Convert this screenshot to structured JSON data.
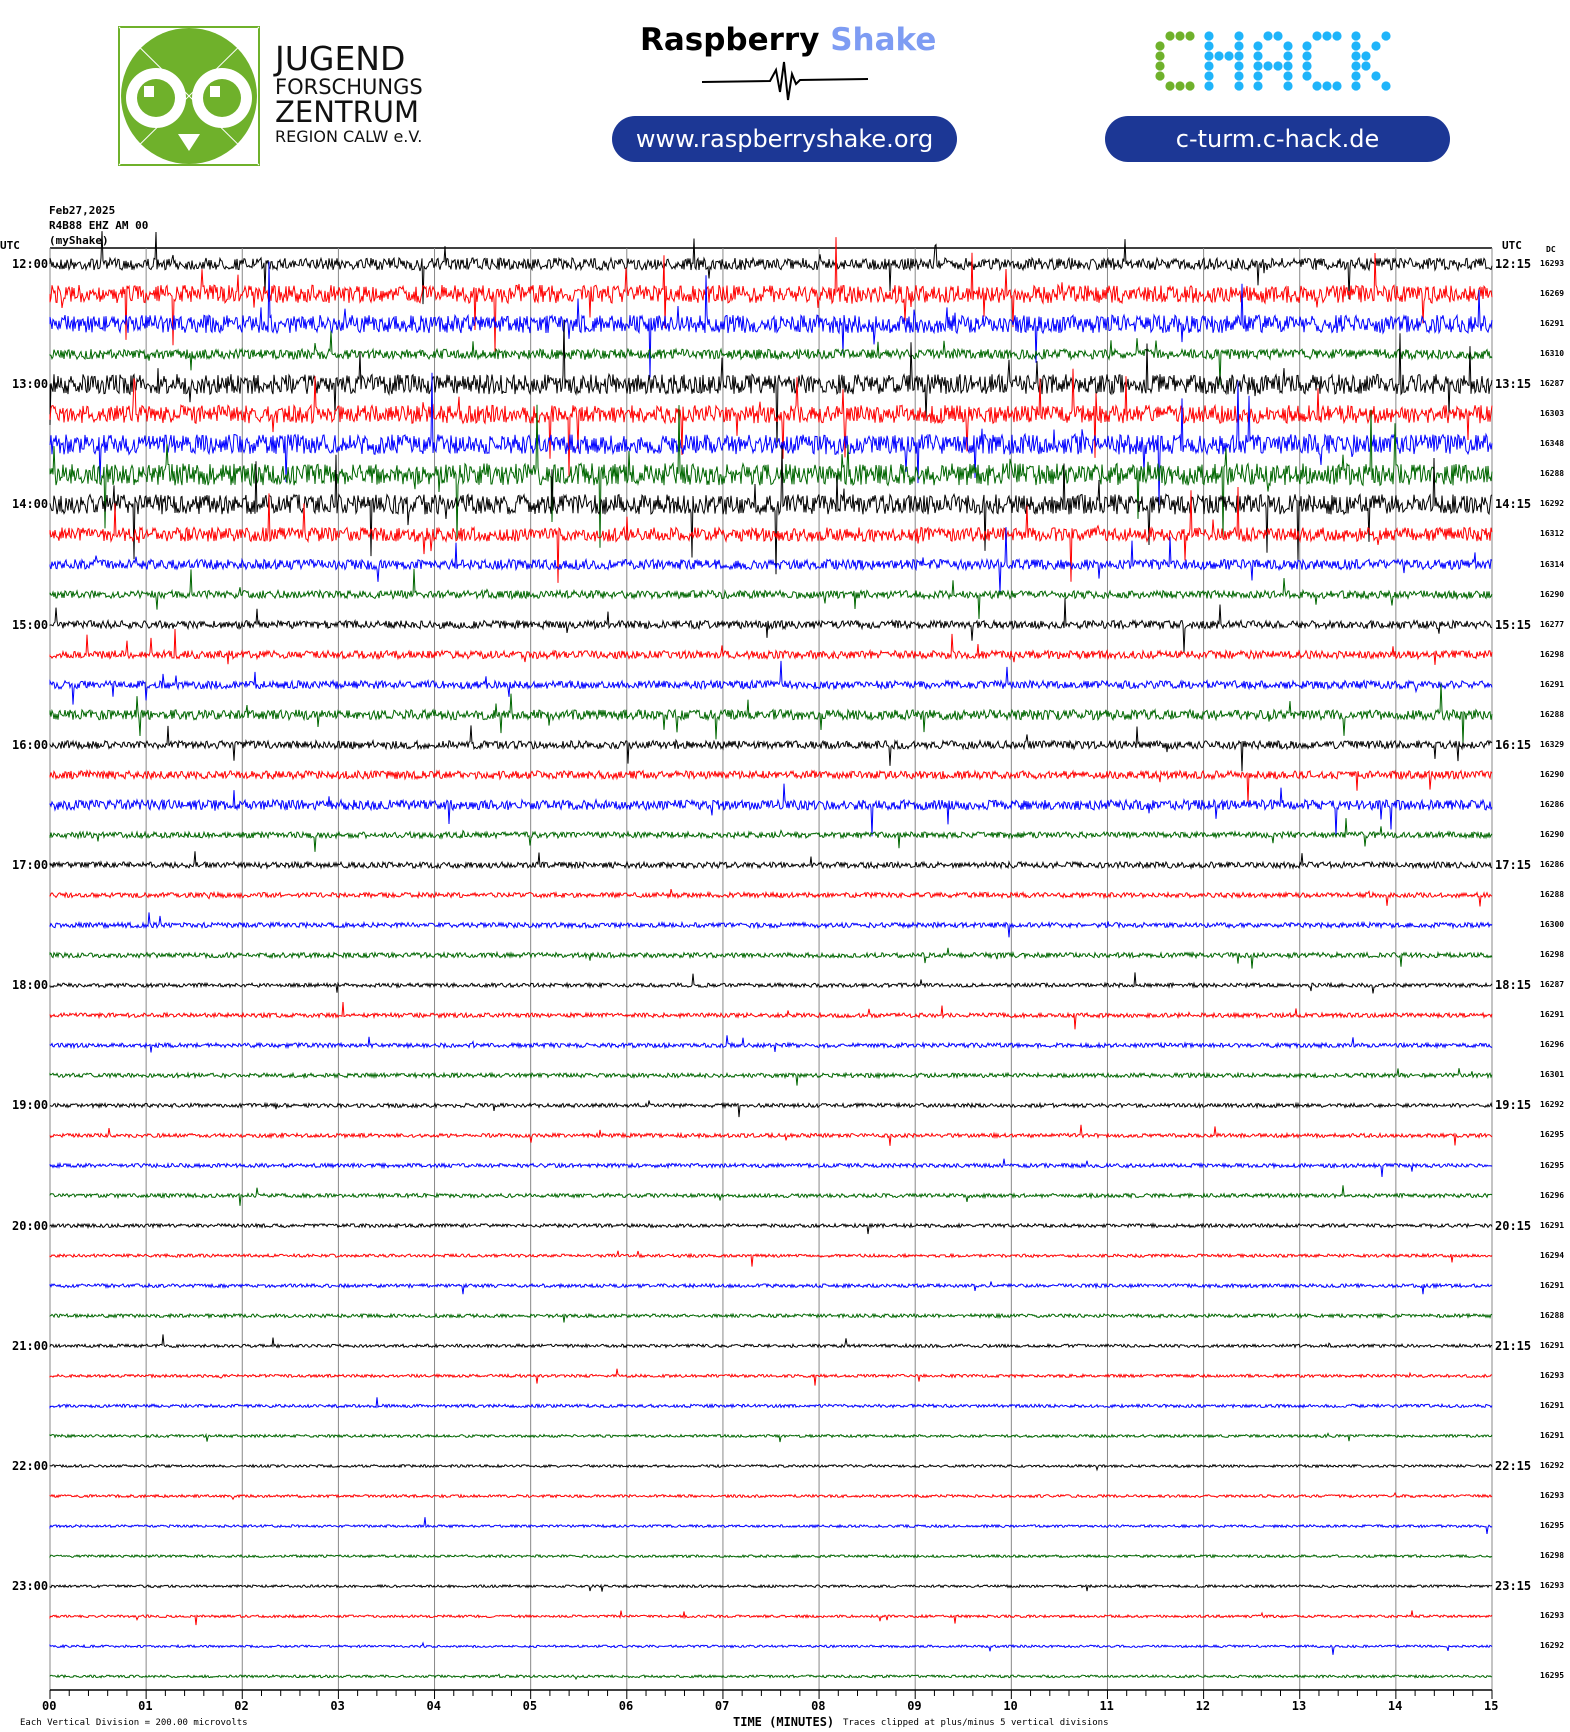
{
  "header": {
    "jfz_logo": {
      "lines": [
        "JUGEND",
        "FORSCHUNGS",
        "ZENTRUM",
        "REGION CALW e.V."
      ],
      "color": "#6fb12b"
    },
    "raspberry_shake": {
      "word1": "Raspberry",
      "word2": "Shake",
      "word2_color": "#7e9cf3",
      "url": "www.raspberryshake.org"
    },
    "chack": {
      "logo_text": "CHACK",
      "c_color": "#6fb12b",
      "hack_color": "#1fb4fa",
      "url": "c-turm.c-hack.de"
    },
    "pill_color": "#1c3795"
  },
  "station": {
    "date": "Feb27,2025",
    "channel": "R4B88 EHZ AM 00",
    "name": "(myShake)"
  },
  "chart_data": {
    "type": "line",
    "title": "",
    "xlabel": "TIME (MINUTES)",
    "x_ticks": [
      "00",
      "01",
      "02",
      "03",
      "04",
      "05",
      "06",
      "07",
      "08",
      "09",
      "10",
      "11",
      "12",
      "13",
      "14",
      "15"
    ],
    "xlim": [
      0,
      15
    ],
    "left_axis_title": "UTC",
    "right_axis_title": "UTC",
    "dc_title": "DC",
    "left_hour_labels": [
      "12:00",
      "13:00",
      "14:00",
      "15:00",
      "16:00",
      "17:00",
      "18:00",
      "19:00",
      "20:00",
      "21:00",
      "22:00",
      "23:00"
    ],
    "right_hour_labels": [
      "12:15",
      "13:15",
      "14:15",
      "15:15",
      "16:15",
      "17:15",
      "18:15",
      "19:15",
      "20:15",
      "21:15",
      "22:15",
      "23:15"
    ],
    "trace_colors": [
      "#000000",
      "#ff0000",
      "#0000ff",
      "#006600"
    ],
    "dc_offsets": [
      16293,
      16269,
      16291,
      16310,
      16287,
      16303,
      16348,
      16288,
      16292,
      16312,
      16314,
      16290,
      16277,
      16298,
      16291,
      16288,
      16329,
      16290,
      16286,
      16290,
      16286,
      16288,
      16300,
      16298,
      16287,
      16291,
      16296,
      16301,
      16292,
      16295,
      16295,
      16296,
      16291,
      16294,
      16291,
      16288,
      16291,
      16293,
      16291,
      16291,
      16292,
      16293,
      16295,
      16298,
      16293,
      16293,
      16292,
      16295
    ],
    "scale_note": "Each Vertical Division =  200.00 microvolts",
    "clip_note": "Traces clipped at plus/minus 5 vertical divisions",
    "grid": true
  }
}
